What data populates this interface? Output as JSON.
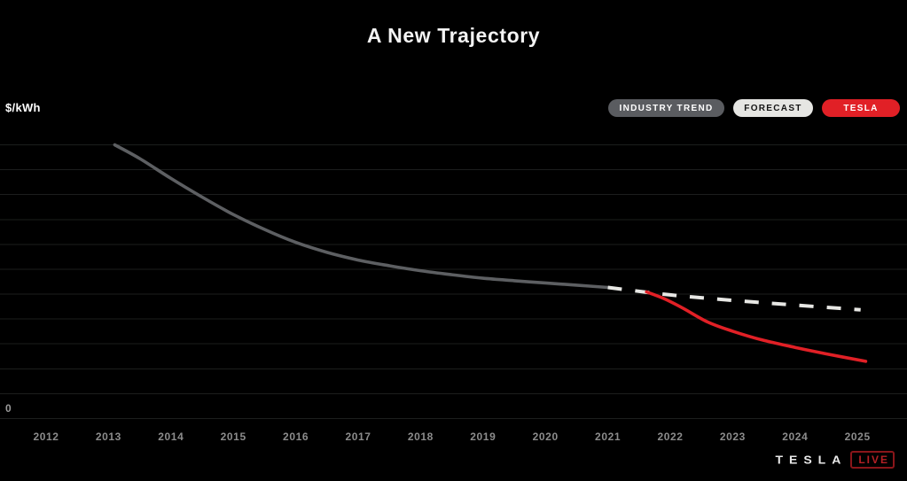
{
  "page": {
    "background": "#000000"
  },
  "header": {
    "title": "A New Trajectory"
  },
  "axis": {
    "y_unit_label": "$/kWh",
    "y_zero_label": "0"
  },
  "legend": {
    "position": "top-right",
    "items": [
      {
        "label": "INDUSTRY TREND",
        "bg": "#5a5c60",
        "text_color": "#ffffff"
      },
      {
        "label": "FORECAST",
        "bg": "#e6e6e3",
        "text_color": "#141414"
      },
      {
        "label": "TESLA",
        "bg": "#e12026",
        "text_color": "#ffffff"
      }
    ]
  },
  "footer": {
    "brand_wordmark": "TESLA",
    "live_badge": "LIVE",
    "live_text_color": "#b52025",
    "live_border_color": "#8a161a"
  },
  "chart_data": {
    "type": "line",
    "title": "A New Trajectory",
    "xlabel": "",
    "ylabel": "$/kWh",
    "grid": "horizontal-only",
    "legend_position": "top-right",
    "x_ticks": [
      "2012",
      "2013",
      "2014",
      "2015",
      "2016",
      "2017",
      "2018",
      "2019",
      "2020",
      "2021",
      "2022",
      "2023",
      "2024",
      "2025"
    ],
    "x_range": [
      2012,
      2025
    ],
    "y_axis": {
      "range": [
        0,
        11
      ],
      "gridline_step": 1,
      "zero_label": "0",
      "note": "y-axis shows only '0'; series values are in gridline units estimated from the plot"
    },
    "series": [
      {
        "name": "INDUSTRY TREND",
        "color": "#5d5f62",
        "style": "solid",
        "points": [
          [
            2013.1,
            11.0
          ],
          [
            2013.5,
            10.45
          ],
          [
            2014.0,
            9.65
          ],
          [
            2014.5,
            8.9
          ],
          [
            2015.0,
            8.2
          ],
          [
            2015.5,
            7.6
          ],
          [
            2016.0,
            7.08
          ],
          [
            2016.5,
            6.68
          ],
          [
            2017.0,
            6.37
          ],
          [
            2017.5,
            6.14
          ],
          [
            2018.0,
            5.94
          ],
          [
            2018.5,
            5.78
          ],
          [
            2019.0,
            5.64
          ],
          [
            2019.5,
            5.54
          ],
          [
            2020.0,
            5.45
          ],
          [
            2020.5,
            5.36
          ],
          [
            2021.0,
            5.27
          ]
        ]
      },
      {
        "name": "FORECAST",
        "color": "#e7e7e4",
        "style": "dashed",
        "points": [
          [
            2021.0,
            5.27
          ],
          [
            2022.0,
            4.97
          ],
          [
            2023.0,
            4.75
          ],
          [
            2024.0,
            4.56
          ],
          [
            2025.05,
            4.37
          ]
        ]
      },
      {
        "name": "TESLA",
        "color": "#e12026",
        "style": "solid",
        "points": [
          [
            2021.62,
            5.09
          ],
          [
            2021.9,
            4.82
          ],
          [
            2022.2,
            4.44
          ],
          [
            2022.6,
            3.88
          ],
          [
            2023.0,
            3.51
          ],
          [
            2023.5,
            3.14
          ],
          [
            2024.0,
            2.86
          ],
          [
            2024.5,
            2.6
          ],
          [
            2025.13,
            2.3
          ]
        ]
      }
    ]
  }
}
